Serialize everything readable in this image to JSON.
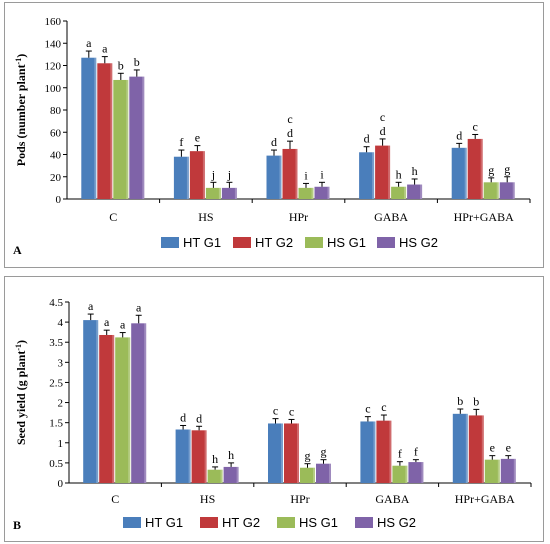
{
  "series_colors": [
    "#4a7ebb",
    "#c0393b",
    "#9bbb59",
    "#7f63a8"
  ],
  "chart_data": [
    {
      "panel": "A",
      "type": "bar",
      "ylabel": "Pods (number plant",
      "ylabel_sup": "-1",
      "ylabel_close": ")",
      "ylim": [
        0,
        160
      ],
      "yticks": [
        "0",
        "20",
        "40",
        "60",
        "80",
        "100",
        "120",
        "140",
        "160"
      ],
      "ytick_values": [
        0,
        20,
        40,
        60,
        80,
        100,
        120,
        140,
        160
      ],
      "categories": [
        "C",
        "HS",
        "HPr",
        "GABA",
        "HPr+GABA"
      ],
      "legend": [
        "HT G1",
        "HT G2",
        "HS G1",
        "HS G2"
      ],
      "legend_position": "bottom",
      "grid": false,
      "series": [
        {
          "name": "HT G1",
          "values": [
            127,
            38,
            39,
            42,
            46
          ],
          "errors": [
            6,
            6,
            5,
            5,
            4
          ],
          "labels": [
            "a",
            "f",
            "d",
            "d",
            "d"
          ]
        },
        {
          "name": "HT G2",
          "values": [
            122,
            43,
            45,
            48,
            54
          ],
          "errors": [
            6,
            5,
            7,
            6,
            4
          ],
          "labels": [
            "a",
            "e",
            "d",
            "d",
            "c"
          ]
        },
        {
          "name": "HS G1",
          "values": [
            107,
            10,
            10,
            11,
            15
          ],
          "errors": [
            6,
            5,
            4,
            4,
            4
          ],
          "labels": [
            "b",
            "j",
            "i",
            "h",
            "g"
          ]
        },
        {
          "name": "HS G2",
          "values": [
            110,
            10,
            11,
            13,
            15
          ],
          "errors": [
            6,
            5,
            4,
            5,
            5
          ],
          "labels": [
            "b",
            "j",
            "i",
            "h",
            "g"
          ]
        }
      ],
      "extra_labels": [
        "",
        "",
        "c",
        "c",
        ""
      ]
    },
    {
      "panel": "B",
      "type": "bar",
      "ylabel": "Seed yield (g plant",
      "ylabel_sup": "-1",
      "ylabel_close": ")",
      "ylim": [
        0,
        4.5
      ],
      "yticks": [
        "0",
        "0.5",
        "1",
        "1.5",
        "2",
        "2.5",
        "3",
        "3.5",
        "4",
        "4.5"
      ],
      "ytick_values": [
        0,
        0.5,
        1,
        1.5,
        2,
        2.5,
        3,
        3.5,
        4,
        4.5
      ],
      "categories": [
        "C",
        "HS",
        "HPr",
        "GABA",
        "HPr+GABA"
      ],
      "legend": [
        "HT G1",
        "HT G2",
        "HS G1",
        "HS G2"
      ],
      "legend_position": "bottom",
      "grid": false,
      "series": [
        {
          "name": "HT G1",
          "values": [
            4.05,
            1.33,
            1.48,
            1.53,
            1.72
          ],
          "errors": [
            0.15,
            0.1,
            0.12,
            0.12,
            0.12
          ],
          "labels": [
            "a",
            "d",
            "c",
            "c",
            "b"
          ]
        },
        {
          "name": "HT G2",
          "values": [
            3.68,
            1.31,
            1.48,
            1.55,
            1.68
          ],
          "errors": [
            0.12,
            0.1,
            0.1,
            0.14,
            0.15
          ],
          "labels": [
            "a",
            "d",
            "c",
            "c",
            "b"
          ]
        },
        {
          "name": "HS G1",
          "values": [
            3.62,
            0.33,
            0.38,
            0.43,
            0.58
          ],
          "errors": [
            0.12,
            0.07,
            0.1,
            0.1,
            0.1
          ],
          "labels": [
            "a",
            "h",
            "g",
            "f",
            "e"
          ]
        },
        {
          "name": "HS G2",
          "values": [
            3.97,
            0.4,
            0.48,
            0.52,
            0.6
          ],
          "errors": [
            0.2,
            0.1,
            0.1,
            0.06,
            0.08
          ],
          "labels": [
            "a",
            "h",
            "g",
            "f",
            "e"
          ]
        }
      ],
      "extra_labels": [
        "",
        "",
        "",
        "",
        ""
      ]
    }
  ]
}
